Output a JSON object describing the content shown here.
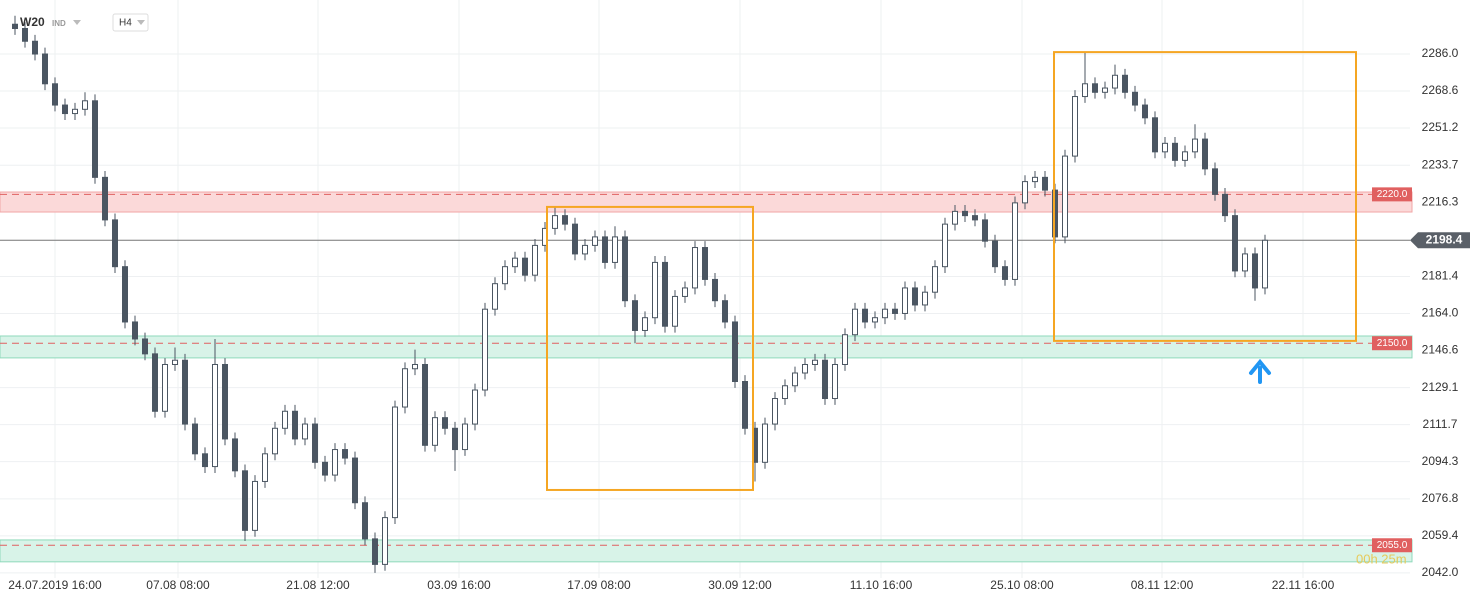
{
  "header": {
    "symbol": "W20",
    "market": "IND",
    "interval": "H4",
    "timer": "00h 25m"
  },
  "chart_data": {
    "type": "candlestick",
    "up_color": "#ffffff",
    "down_color": "#4b5662",
    "wick_color": "#4b5662",
    "xlim": [
      -1.5,
      139.5
    ],
    "ylim": [
      2039.6,
      2311.4
    ],
    "grid": true,
    "xticks": [
      {
        "value": 4,
        "label": "24.07.2019  16:00"
      },
      {
        "value": 16.3,
        "label": "07.08  08:00"
      },
      {
        "value": 30.3,
        "label": "21.08  12:00"
      },
      {
        "value": 44.4,
        "label": "03.09  16:00"
      },
      {
        "value": 58.4,
        "label": "17.09  08:00"
      },
      {
        "value": 72.5,
        "label": "30.09  12:00"
      },
      {
        "value": 86.6,
        "label": "11.10  16:00"
      },
      {
        "value": 100.7,
        "label": "25.10  08:00"
      },
      {
        "value": 114.7,
        "label": "08.11  12:00"
      },
      {
        "value": 128.8,
        "label": "22.11  16:00"
      }
    ],
    "yticks": [
      {
        "value": 2042,
        "label": "2042.0"
      },
      2059.4,
      2076.8,
      2094.3,
      2111.7,
      2129.1,
      2146.6,
      {
        "value": 2164,
        "label": "2164.0"
      },
      2181.4,
      2216.3,
      2233.7,
      2251.2,
      2268.6,
      {
        "value": 2286,
        "label": "2286.0"
      }
    ],
    "ohlc": [
      [
        2300,
        2304,
        2295,
        2298
      ],
      [
        2298,
        2301,
        2289,
        2292
      ],
      [
        2292,
        2295,
        2283,
        2286
      ],
      [
        2286,
        2289,
        2269,
        2272
      ],
      [
        2272,
        2275,
        2259,
        2262
      ],
      [
        2262,
        2265,
        2255,
        2258
      ],
      [
        2258,
        2263,
        2255,
        2260
      ],
      [
        2260,
        2268,
        2257,
        2264
      ],
      [
        2264,
        2267,
        2225,
        2228
      ],
      [
        2228,
        2231,
        2205,
        2208
      ],
      [
        2208,
        2211,
        2183,
        2186
      ],
      [
        2186,
        2189,
        2157,
        2160
      ],
      [
        2160,
        2163,
        2149,
        2152
      ],
      [
        2152,
        2155,
        2142,
        2145
      ],
      [
        2145,
        2148,
        2115,
        2118
      ],
      [
        2118,
        2143,
        2115,
        2140
      ],
      [
        2140,
        2148,
        2137,
        2142
      ],
      [
        2142,
        2145,
        2109,
        2112
      ],
      [
        2112,
        2115,
        2095,
        2098
      ],
      [
        2098,
        2101,
        2089,
        2092
      ],
      [
        2092,
        2152,
        2089,
        2140
      ],
      [
        2140,
        2143,
        2102,
        2105
      ],
      [
        2105,
        2108,
        2087,
        2090
      ],
      [
        2090,
        2093,
        2057,
        2062
      ],
      [
        2062,
        2088,
        2059,
        2085
      ],
      [
        2085,
        2101,
        2082,
        2098
      ],
      [
        2098,
        2113,
        2095,
        2110
      ],
      [
        2110,
        2121,
        2107,
        2118
      ],
      [
        2118,
        2121,
        2102,
        2105
      ],
      [
        2105,
        2115,
        2102,
        2112
      ],
      [
        2112,
        2115,
        2091,
        2094
      ],
      [
        2094,
        2097,
        2085,
        2088
      ],
      [
        2088,
        2103,
        2085,
        2100
      ],
      [
        2100,
        2103,
        2093,
        2096
      ],
      [
        2096,
        2099,
        2072,
        2075
      ],
      [
        2075,
        2078,
        2055,
        2058
      ],
      [
        2058,
        2061,
        2042,
        2046
      ],
      [
        2046,
        2071,
        2043,
        2068
      ],
      [
        2068,
        2123,
        2065,
        2120
      ],
      [
        2120,
        2141,
        2117,
        2138
      ],
      [
        2138,
        2147,
        2135,
        2140
      ],
      [
        2140,
        2143,
        2099,
        2102
      ],
      [
        2102,
        2118,
        2099,
        2115
      ],
      [
        2115,
        2118,
        2107,
        2110
      ],
      [
        2110,
        2113,
        2090,
        2100
      ],
      [
        2100,
        2115,
        2097,
        2112
      ],
      [
        2112,
        2131,
        2109,
        2128
      ],
      [
        2128,
        2169,
        2125,
        2166
      ],
      [
        2166,
        2181,
        2163,
        2178
      ],
      [
        2178,
        2189,
        2175,
        2186
      ],
      [
        2186,
        2193,
        2183,
        2190
      ],
      [
        2190,
        2193,
        2179,
        2182
      ],
      [
        2182,
        2199,
        2179,
        2196
      ],
      [
        2196,
        2207,
        2193,
        2204
      ],
      [
        2204,
        2214,
        2201,
        2210
      ],
      [
        2210,
        2213,
        2203,
        2206
      ],
      [
        2206,
        2209,
        2189,
        2192
      ],
      [
        2192,
        2199,
        2189,
        2196
      ],
      [
        2196,
        2203,
        2193,
        2200
      ],
      [
        2200,
        2203,
        2185,
        2188
      ],
      [
        2188,
        2205,
        2185,
        2200
      ],
      [
        2200,
        2203,
        2167,
        2170
      ],
      [
        2170,
        2173,
        2150,
        2156
      ],
      [
        2156,
        2165,
        2153,
        2162
      ],
      [
        2162,
        2191,
        2159,
        2188
      ],
      [
        2188,
        2191,
        2155,
        2158
      ],
      [
        2158,
        2175,
        2155,
        2172
      ],
      [
        2172,
        2179,
        2169,
        2176
      ],
      [
        2176,
        2198,
        2173,
        2195
      ],
      [
        2195,
        2198,
        2177,
        2180
      ],
      [
        2180,
        2183,
        2167,
        2170
      ],
      [
        2170,
        2173,
        2157,
        2160
      ],
      [
        2160,
        2163,
        2129,
        2132
      ],
      [
        2132,
        2135,
        2107,
        2110
      ],
      [
        2110,
        2113,
        2085,
        2094
      ],
      [
        2094,
        2115,
        2091,
        2112
      ],
      [
        2112,
        2127,
        2109,
        2124
      ],
      [
        2124,
        2133,
        2121,
        2130
      ],
      [
        2130,
        2139,
        2127,
        2136
      ],
      [
        2136,
        2143,
        2133,
        2140
      ],
      [
        2140,
        2145,
        2137,
        2142
      ],
      [
        2142,
        2145,
        2121,
        2124
      ],
      [
        2124,
        2143,
        2121,
        2140
      ],
      [
        2140,
        2157,
        2137,
        2154
      ],
      [
        2154,
        2169,
        2151,
        2166
      ],
      [
        2166,
        2169,
        2157,
        2160
      ],
      [
        2160,
        2165,
        2157,
        2162
      ],
      [
        2162,
        2169,
        2159,
        2166
      ],
      [
        2166,
        2169,
        2161,
        2164
      ],
      [
        2164,
        2179,
        2161,
        2176
      ],
      [
        2176,
        2179,
        2165,
        2168
      ],
      [
        2168,
        2177,
        2165,
        2174
      ],
      [
        2174,
        2189,
        2171,
        2186
      ],
      [
        2186,
        2209,
        2183,
        2206
      ],
      [
        2206,
        2215,
        2203,
        2212
      ],
      [
        2212,
        2215,
        2207,
        2210
      ],
      [
        2210,
        2213,
        2205,
        2208
      ],
      [
        2208,
        2211,
        2195,
        2198
      ],
      [
        2198,
        2201,
        2183,
        2186
      ],
      [
        2186,
        2189,
        2177,
        2180
      ],
      [
        2180,
        2219,
        2177,
        2216
      ],
      [
        2216,
        2229,
        2213,
        2226
      ],
      [
        2226,
        2231,
        2223,
        2228
      ],
      [
        2228,
        2231,
        2219,
        2222
      ],
      [
        2222,
        2225,
        2197,
        2200
      ],
      [
        2200,
        2241,
        2197,
        2238
      ],
      [
        2238,
        2269,
        2235,
        2266
      ],
      [
        2266,
        2287,
        2263,
        2272
      ],
      [
        2272,
        2275,
        2265,
        2268
      ],
      [
        2268,
        2273,
        2265,
        2270
      ],
      [
        2270,
        2281,
        2267,
        2276
      ],
      [
        2276,
        2279,
        2265,
        2268
      ],
      [
        2268,
        2271,
        2259,
        2262
      ],
      [
        2262,
        2265,
        2253,
        2256
      ],
      [
        2256,
        2259,
        2237,
        2240
      ],
      [
        2240,
        2247,
        2237,
        2244
      ],
      [
        2244,
        2247,
        2233,
        2236
      ],
      [
        2236,
        2243,
        2233,
        2240
      ],
      [
        2240,
        2253,
        2237,
        2246
      ],
      [
        2246,
        2249,
        2229,
        2232
      ],
      [
        2232,
        2235,
        2217,
        2220
      ],
      [
        2220,
        2223,
        2207,
        2210
      ],
      [
        2210,
        2213,
        2181,
        2184
      ],
      [
        2184,
        2195,
        2181,
        2192
      ],
      [
        2192,
        2195,
        2170,
        2176
      ],
      [
        2176,
        2201,
        2173,
        2198.4
      ]
    ],
    "levels": [
      {
        "value": 2220,
        "label": "2220.0",
        "color": "#e06060",
        "band": [
          2211.7,
          2221.1
        ],
        "band_color": "#fbd9d9"
      },
      {
        "value": 2150,
        "label": "2150.0",
        "color": "#e06060",
        "band": [
          2143.1,
          2153.4
        ],
        "band_color": "#d8f3e8"
      },
      {
        "value": 2055,
        "label": "2055.0",
        "color": "#e06060",
        "band": [
          2047.2,
          2057.5
        ],
        "band_color": "#d8f3e8"
      }
    ],
    "last": {
      "value": 2198.4,
      "color": "#5a6068"
    },
    "boxes": [
      {
        "x": [
          53.2,
          73.8
        ],
        "y": [
          2081,
          2214.1
        ],
        "color": "#f5a623"
      },
      {
        "x": [
          103.9,
          134.1
        ],
        "y": [
          2151.1,
          2286.9
        ],
        "color": "#f5a623"
      }
    ]
  }
}
